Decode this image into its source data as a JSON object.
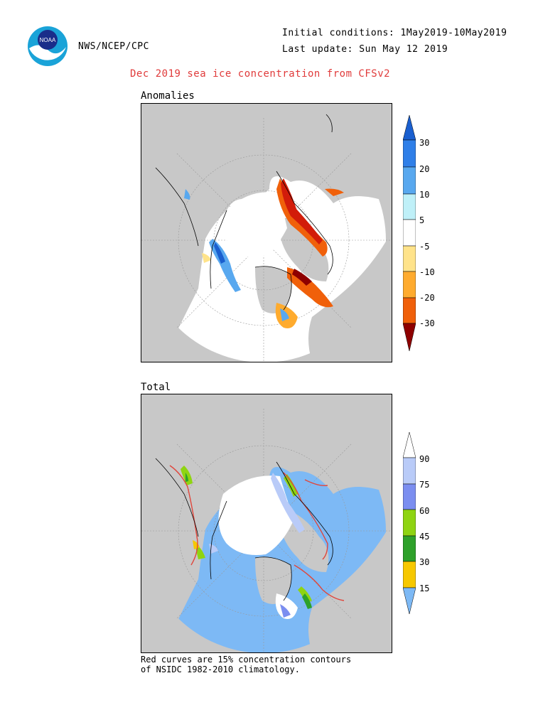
{
  "header": {
    "org": "NWS/NCEP/CPC",
    "initial_conditions": "Initial conditions: 1May2019-10May2019",
    "last_update": "Last update: Sun May 12 2019",
    "logo_text": "NOAA"
  },
  "title": "Dec 2019 sea ice concentration from CFSv2",
  "panels": {
    "anomalies": {
      "label": "Anomalies",
      "colorbar": {
        "labels": [
          "30",
          "20",
          "10",
          "5",
          "-5",
          "-10",
          "-20",
          "-30"
        ],
        "colors": [
          "#1a5fcf",
          "#2f7fe8",
          "#58a8ef",
          "#bff0f8",
          "#ffffff",
          "#ffe38a",
          "#ffab2e",
          "#f0600a",
          "#d21c0a",
          "#8e0000"
        ]
      }
    },
    "total": {
      "label": "Total",
      "colorbar": {
        "labels": [
          "90",
          "75",
          "60",
          "45",
          "30",
          "15"
        ],
        "colors": [
          "#ffffff",
          "#b9cbf8",
          "#7b8ef0",
          "#8fd412",
          "#2ea12a",
          "#f6c800",
          "#7db9f5"
        ]
      }
    }
  },
  "footnote": {
    "line1": "Red curves are 15% concentration contours",
    "line2": "of NSIDC 1982-2010 climatology."
  }
}
